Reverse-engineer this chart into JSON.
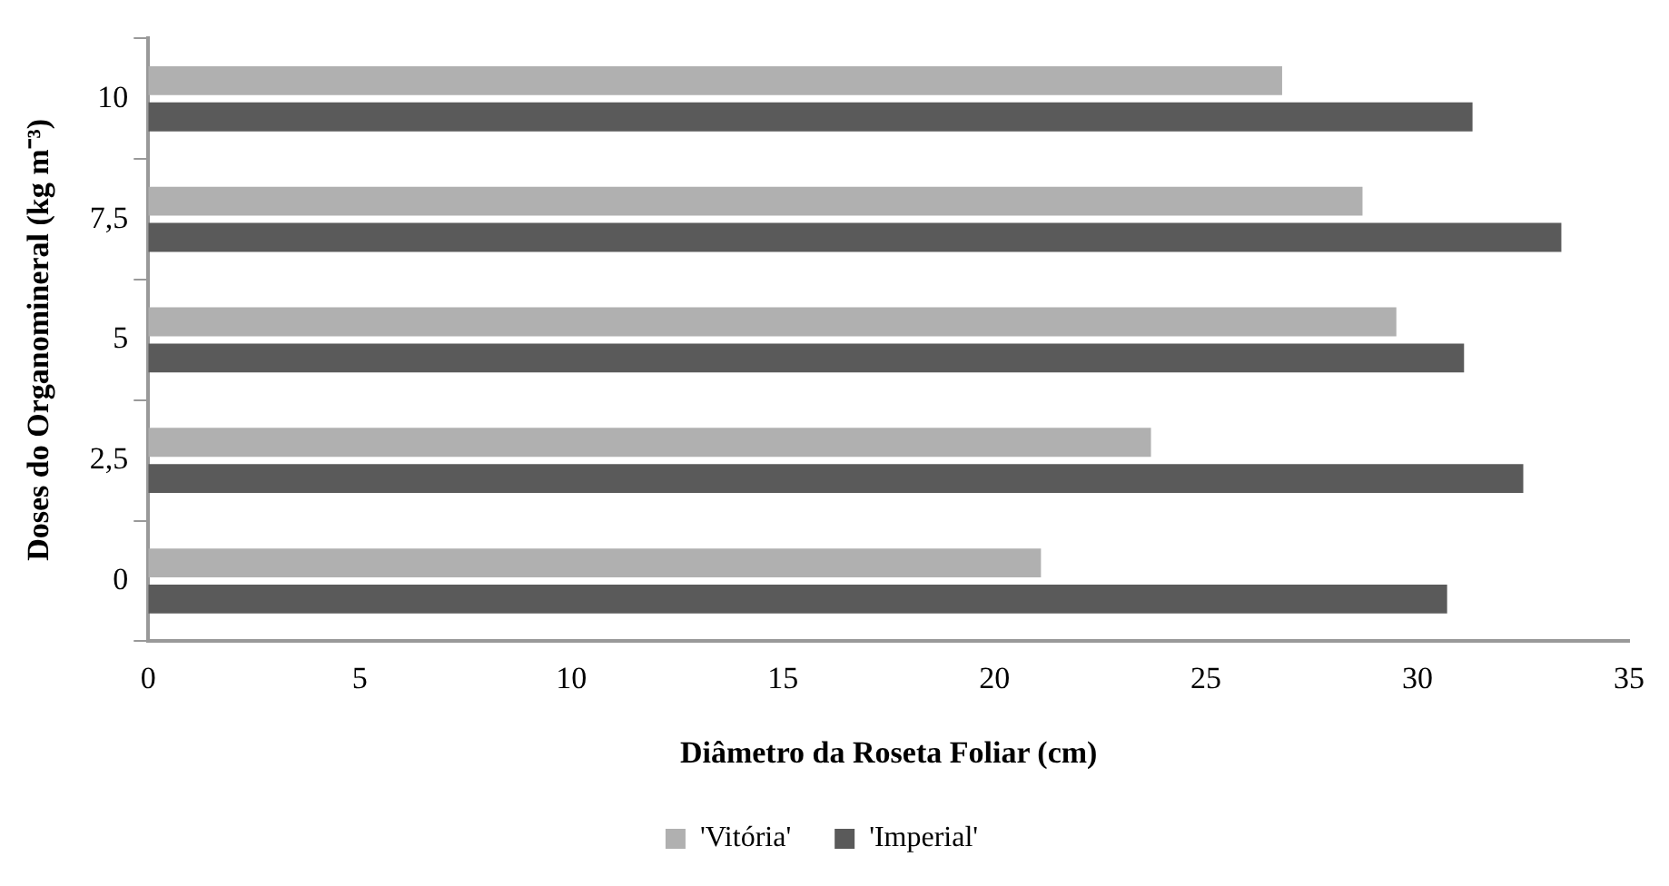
{
  "chart_data": {
    "type": "bar",
    "orientation": "horizontal",
    "xlabel": "Diâmetro da Roseta Foliar (cm)",
    "ylabel": "Doses do Organomineral (kg m⁻³)",
    "categories": [
      "10",
      "7,5",
      "5",
      "2,5",
      "0"
    ],
    "series": [
      {
        "name": "'Vitória'",
        "color": "#b0b0b0",
        "values": [
          26.8,
          28.7,
          29.5,
          23.7,
          21.1
        ]
      },
      {
        "name": "'Imperial'",
        "color": "#5a5a5a",
        "values": [
          31.3,
          33.4,
          31.1,
          32.5,
          30.7
        ]
      }
    ],
    "xlim": [
      0,
      35
    ],
    "xticks": [
      0,
      5,
      10,
      15,
      20,
      25,
      30,
      35
    ],
    "grid": false,
    "legend": "bottom"
  }
}
